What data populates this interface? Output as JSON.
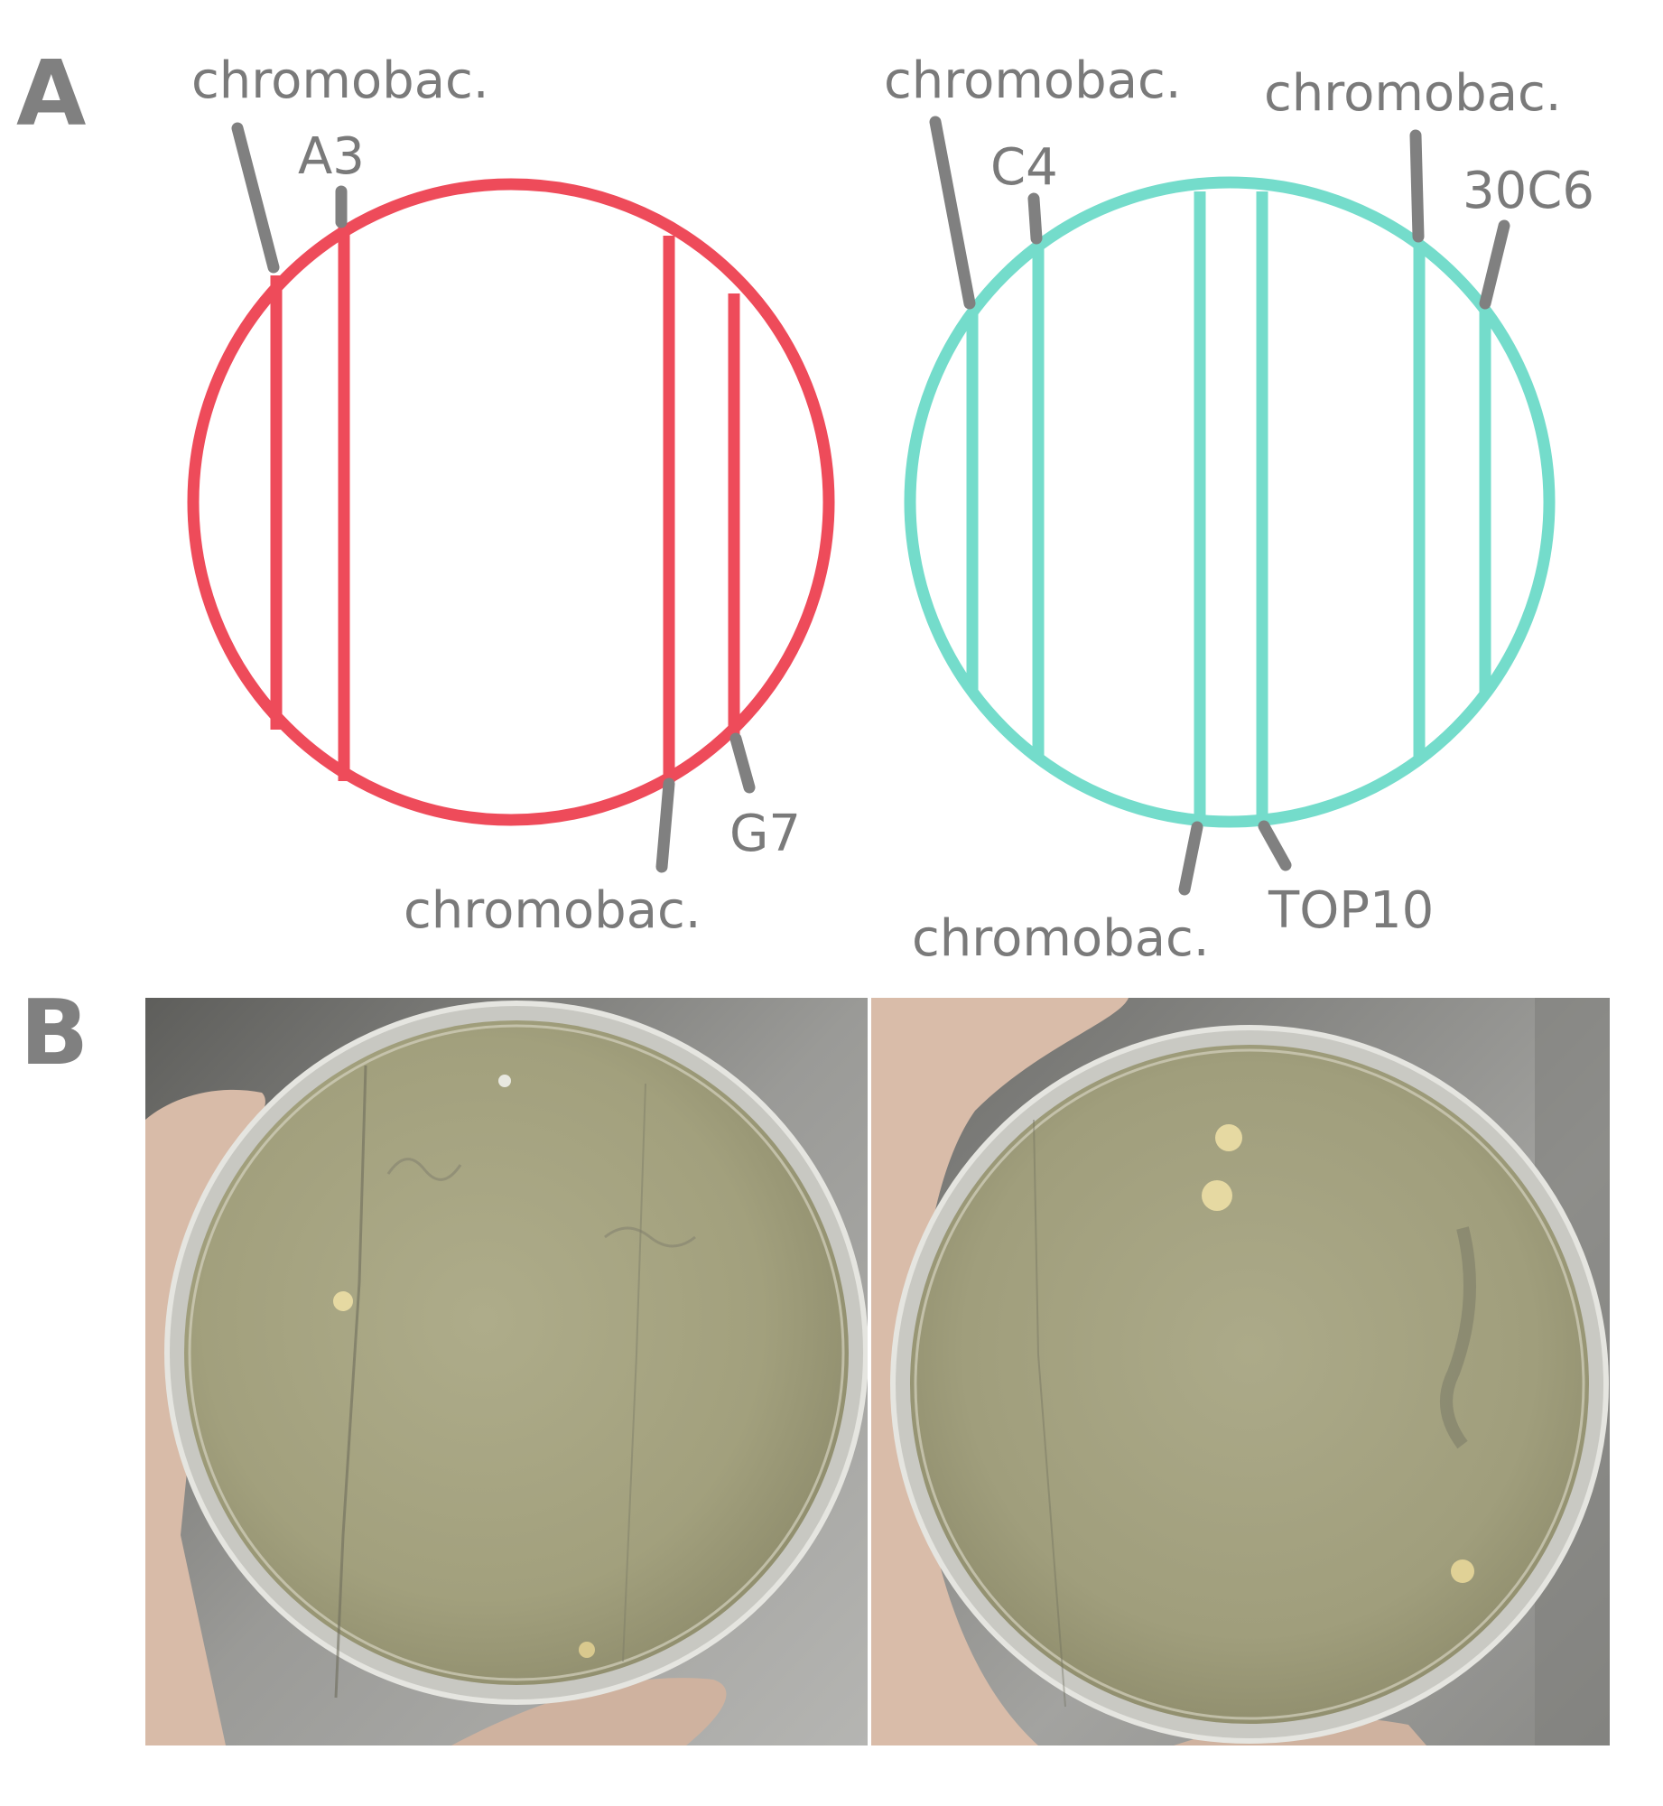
{
  "panels": {
    "a": {
      "letter": "A"
    },
    "b": {
      "letter": "B"
    }
  },
  "plate_left": {
    "color": "#ee4b5a",
    "labels": {
      "chromobac_top": "chromobac.",
      "a3": "A3",
      "chromobac_bottom": "chromobac.",
      "g7": "G7"
    }
  },
  "plate_right": {
    "color": "#74dccb",
    "labels": {
      "chromobac_top_left": "chromobac.",
      "c4": "C4",
      "chromobac_top_right": "chromobac.",
      "c30c6": "30C6",
      "chromobac_bottom": "chromobac.",
      "top10": "TOP10"
    }
  },
  "photos": {
    "agar_color": "#a8a683",
    "background_color": "#8f8f8c",
    "hand_color": "#dcbfae"
  }
}
